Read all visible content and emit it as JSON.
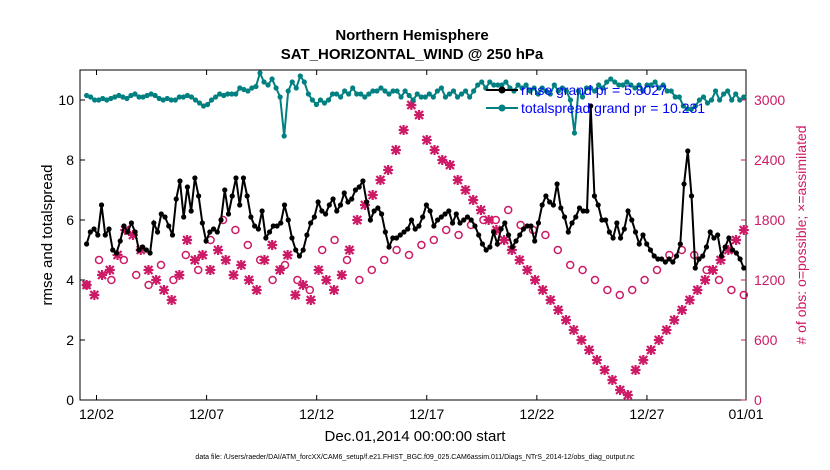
{
  "chart_data": {
    "type": "line",
    "title": "Northern Hemisphere",
    "subtitle": "SAT_HORIZONTAL_WIND @ 250 hPa",
    "xlabel": "Dec.01,2014 00:00:00 start",
    "ylabel": "rmse and totalspread",
    "ylabel_right": "# of obs: o=possible; ×=assimilated",
    "xlim": [
      0.75,
      31.0
    ],
    "ylim": [
      0,
      11
    ],
    "ylim_right": [
      0,
      3300
    ],
    "x_tick_values": [
      1.5,
      6.5,
      11.5,
      16.5,
      21.5,
      26.5,
      31.0
    ],
    "x_tick_labels": [
      "12/02",
      "12/07",
      "12/12",
      "12/17",
      "12/22",
      "12/27",
      "01/01"
    ],
    "y_ticks": [
      0,
      2,
      4,
      6,
      8,
      10
    ],
    "y_ticks_right": [
      0,
      600,
      1200,
      1800,
      2400,
      3000
    ],
    "legend_position": "top-right",
    "grid": false,
    "colors": {
      "rmse": "#000000",
      "totalspread": "#008080",
      "obs": "#cc1a66",
      "legend_text": "#0000ff"
    },
    "series": [
      {
        "name": "rmse grand pr = 5.8027",
        "values": [
          5.2,
          5.6,
          5.7,
          5.5,
          6.5,
          5.5,
          5.7,
          5.0,
          4.9,
          5.3,
          5.8,
          5.6,
          5.9,
          5.6,
          5.0,
          5.1,
          5.0,
          4.9,
          5.9,
          5.6,
          6.2,
          6.1,
          5.8,
          5.5,
          6.7,
          7.3,
          6.1,
          7.1,
          6.3,
          7.4,
          6.8,
          5.9,
          5.3,
          5.6,
          5.7,
          5.6,
          6.0,
          7.0,
          6.2,
          6.8,
          7.4,
          6.5,
          7.4,
          6.8,
          6.1,
          5.8,
          5.7,
          6.3,
          5.4,
          5.6,
          5.8,
          5.8,
          5.9,
          6.5,
          6.0,
          5.4,
          5.0,
          4.8,
          5.0,
          5.5,
          5.9,
          6.1,
          6.6,
          6.3,
          6.2,
          6.5,
          6.7,
          6.3,
          6.5,
          6.9,
          6.6,
          6.7,
          7.0,
          7.1,
          7.3,
          6.6,
          6.0,
          6.3,
          6.4,
          6.2,
          5.6,
          5.1,
          5.4,
          5.4,
          5.5,
          5.6,
          5.7,
          6.0,
          5.7,
          5.8,
          6.1,
          6.5,
          6.3,
          5.8,
          6.0,
          6.1,
          6.2,
          6.3,
          5.9,
          6.2,
          5.9,
          6.0,
          6.1,
          6.0,
          5.8,
          5.5,
          5.2,
          5.0,
          5.1,
          5.6,
          5.2,
          5.7,
          5.9,
          5.5,
          5.1,
          5.3,
          5.5,
          5.7,
          5.8,
          5.8,
          5.3,
          5.9,
          6.5,
          6.8,
          6.6,
          6.5,
          7.2,
          6.4,
          6.1,
          5.6,
          5.9,
          6.1,
          6.4,
          6.3,
          6.3,
          9.8,
          6.8,
          6.5,
          6.0,
          6.0,
          5.6,
          5.4,
          5.9,
          5.4,
          5.7,
          6.3,
          6.0,
          5.6,
          5.2,
          5.5,
          5.2,
          5.0,
          4.8,
          4.7,
          4.7,
          4.6,
          4.7,
          4.6,
          4.8,
          5.2,
          7.2,
          8.3,
          6.8,
          4.4,
          4.7,
          4.8,
          5.1,
          5.6,
          5.4,
          5.5,
          4.8,
          5.1,
          5.4,
          5.0,
          4.9,
          4.7,
          4.4
        ]
      },
      {
        "name": "totalspread grand pr = 10.231",
        "values": [
          10.15,
          10.1,
          10.0,
          10.0,
          10.05,
          10.0,
          10.05,
          10.1,
          10.15,
          10.1,
          10.05,
          10.15,
          10.2,
          10.1,
          10.1,
          10.15,
          10.2,
          10.15,
          10.05,
          10.0,
          10.05,
          10.0,
          10.0,
          10.1,
          10.1,
          10.15,
          10.1,
          10.0,
          9.9,
          9.8,
          9.85,
          10.0,
          10.1,
          10.2,
          10.15,
          10.2,
          10.2,
          10.2,
          10.4,
          10.35,
          10.3,
          10.4,
          10.45,
          10.9,
          10.6,
          10.5,
          10.7,
          10.4,
          10.1,
          8.8,
          10.3,
          10.6,
          10.4,
          10.8,
          10.6,
          10.2,
          10.0,
          9.85,
          10.0,
          9.9,
          10.0,
          10.2,
          10.2,
          10.1,
          10.3,
          10.2,
          10.4,
          10.2,
          10.2,
          10.1,
          10.2,
          10.3,
          10.3,
          10.4,
          10.3,
          10.2,
          10.3,
          10.3,
          10.1,
          10.3,
          10.15,
          10.0,
          10.2,
          10.1,
          10.1,
          10.2,
          10.1,
          10.3,
          10.4,
          10.1,
          10.2,
          10.3,
          10.1,
          10.2,
          10.3,
          10.1,
          10.3,
          10.5,
          10.6,
          10.4,
          10.6,
          10.5,
          10.5,
          10.5,
          10.6,
          10.4,
          10.3,
          10.5,
          10.4,
          10.5,
          10.3,
          10.4,
          10.2,
          10.4,
          10.3,
          10.2,
          10.5,
          10.3,
          10.4,
          10.3,
          10.0,
          8.9,
          10.3,
          10.1,
          10.4,
          10.4,
          10.3,
          10.5,
          10.4,
          10.6,
          10.7,
          10.6,
          10.5,
          10.5,
          10.6,
          10.5,
          10.4,
          10.5,
          10.3,
          10.5,
          10.5,
          10.6,
          10.4,
          10.5,
          10.3,
          10.3,
          10.1,
          10.1,
          9.8,
          9.7,
          9.7,
          9.8,
          10.0,
          10.1,
          9.9,
          10.0,
          10.3,
          10.0,
          10.2,
          10.3,
          10.0,
          10.2,
          10.0,
          10.1
        ]
      },
      {
        "name": "obs possible",
        "values": [
          1150,
          1400,
          1200,
          1400,
          1250,
          1150,
          1350,
          1200,
          1450,
          1300,
          1600,
          1800,
          1700,
          1550,
          1400,
          1200,
          1350,
          1200,
          1100,
          1500,
          1600,
          1400,
          1200,
          1300,
          1400,
          1500,
          1450,
          1550,
          1600,
          1700,
          1650,
          1750,
          1800,
          1800,
          1900,
          1750,
          1700,
          1650,
          1500,
          1350,
          1300,
          1200,
          1100,
          1050,
          1100,
          1200,
          1300,
          1450,
          1500,
          1450,
          1300,
          1200,
          1100,
          1050
        ]
      },
      {
        "name": "obs assimilated",
        "values": [
          1150,
          1050,
          1250,
          1300,
          1450,
          1700,
          1650,
          1500,
          1300,
          1200,
          1100,
          1000,
          1250,
          1600,
          1400,
          1450,
          1300,
          1500,
          1400,
          1250,
          1350,
          1200,
          1100,
          1400,
          1550,
          1300,
          1450,
          1050,
          1150,
          1000,
          1300,
          1200,
          1100,
          1250,
          1500,
          1800,
          1950,
          2050,
          2200,
          2300,
          2500,
          2700,
          2950,
          2850,
          2600,
          2500,
          2400,
          2350,
          2200,
          2100,
          2000,
          1900,
          1800,
          1700,
          1600,
          1500,
          1400,
          1300,
          1200,
          1100,
          1000,
          900,
          800,
          700,
          600,
          500,
          400,
          300,
          200,
          100,
          50,
          300,
          400,
          500,
          600,
          700,
          800,
          900,
          1000,
          1100,
          1200,
          1300,
          1400,
          1500,
          1600,
          1700
        ]
      }
    ]
  },
  "footnote": "data file: /Users/raeder/DAI/ATM_forcXX/CAM6_setup/f.e21.FHIST_BGC.f09_025.CAM6assim.011/Diags_NTrS_2014-12/obs_diag_output.nc"
}
